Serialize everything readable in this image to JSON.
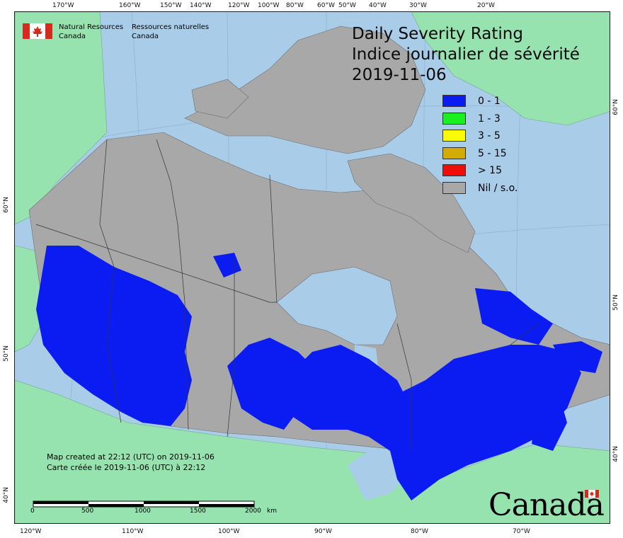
{
  "agency": {
    "name_en_line1": "Natural Resources",
    "name_en_line2": "Canada",
    "name_fr_line1": "Ressources naturelles",
    "name_fr_line2": "Canada"
  },
  "title": {
    "line1": "Daily Severity Rating",
    "line2": "Indice journalier de sévérité",
    "date": "2019-11-06"
  },
  "legend": [
    {
      "label": "0 - 1",
      "color": "#0a1cf2"
    },
    {
      "label": "1 - 3",
      "color": "#19f01d"
    },
    {
      "label": "3 - 5",
      "color": "#fbfb08"
    },
    {
      "label": "5 - 15",
      "color": "#d2ad00"
    },
    {
      "label": "> 15",
      "color": "#f20b0b"
    },
    {
      "label": "Nil / s.o.",
      "color": "#a8a8a8"
    }
  ],
  "credits": {
    "line1": "Map created at 22:12 (UTC) on 2019-11-06",
    "line2": "Carte créée le 2019-11-06 (UTC) à 22:12"
  },
  "scale": {
    "labels": [
      "0",
      "500",
      "1000",
      "1500",
      "2000"
    ],
    "unit": "km"
  },
  "graticule": {
    "top": [
      "170°W",
      "160°W",
      "150°W",
      "140°W",
      "120°W",
      "100°W",
      "80°W",
      "60°W",
      "50°W",
      "40°W",
      "30°W",
      "20°W"
    ],
    "bottom": [
      "120°W",
      "110°W",
      "100°W",
      "90°W",
      "80°W",
      "70°W"
    ],
    "left": [
      "60°N",
      "50°N",
      "40°N"
    ],
    "right": [
      "60°N",
      "50°N",
      "40°N"
    ]
  },
  "wordmark": "Canada",
  "colors": {
    "water": "#a9cde9",
    "land_other": "#97e3b0",
    "nil": "#a8a8a8",
    "low": "#0a1cf2",
    "flag_red": "#d52b1e"
  }
}
